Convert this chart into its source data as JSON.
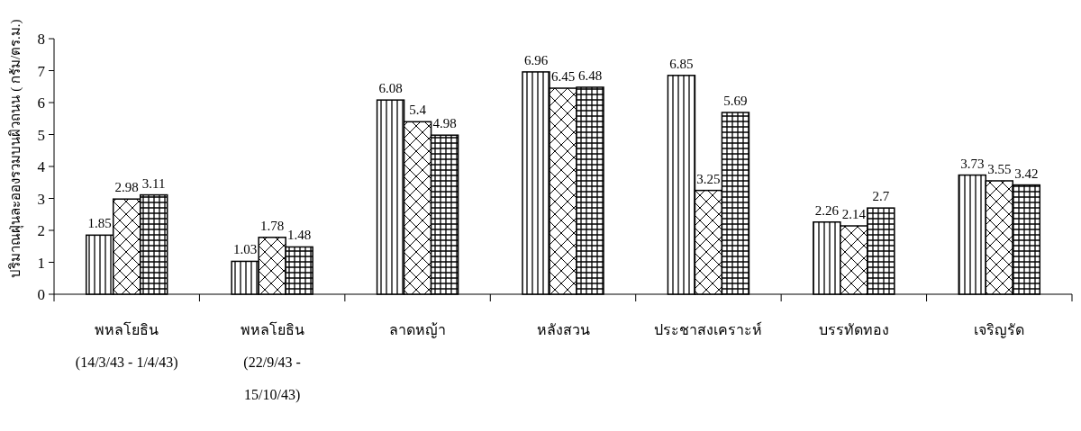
{
  "chart_data": {
    "type": "bar",
    "ylabel": "ปริมาณฝุ่นละอองรวมบนผิวถนน ( กรัม/ตร.ม.)",
    "categories": [
      "พหลโยธิน\n(14/3/43 - 1/4/43)",
      "พหลโยธิน\n(22/9/43 -\n15/10/43)",
      "ลาดหญ้า",
      "หลังสวน",
      "ประชาสงเคราะห์",
      "บรรทัดทอง",
      "เจริญรัด"
    ],
    "series": [
      {
        "color": "#000000",
        "values": [
          1.85,
          1.03,
          6.08,
          6.96,
          6.85,
          2.26,
          3.73
        ]
      },
      {
        "color": "#000000",
        "values": [
          2.98,
          1.78,
          5.4,
          6.45,
          3.25,
          2.14,
          3.55
        ]
      },
      {
        "color": "#000000",
        "values": [
          3.11,
          1.48,
          4.98,
          6.48,
          5.69,
          2.7,
          3.42
        ]
      }
    ],
    "ylim": [
      0,
      8
    ],
    "yticks": [
      0,
      1,
      2,
      3,
      4,
      5,
      6,
      7,
      8
    ],
    "data_labels": true
  }
}
